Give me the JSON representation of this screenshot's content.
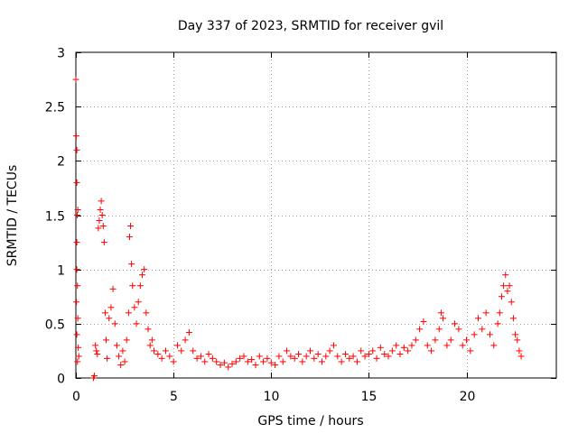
{
  "chart_data": {
    "type": "scatter",
    "title": "Day 337 of 2023, SRMTID for receiver gvil",
    "xlabel": "GPS time / hours",
    "ylabel": "SRMTID / TECUs",
    "xlim": [
      0,
      24.6
    ],
    "ylim": [
      0,
      3
    ],
    "xticks": [
      0,
      5,
      10,
      15,
      20
    ],
    "xtick_labels": [
      "0",
      "5",
      "10",
      "15",
      "20"
    ],
    "yticks": [
      0,
      0.5,
      1,
      1.5,
      2,
      2.5,
      3
    ],
    "ytick_labels": [
      "0",
      "0.5",
      "1",
      "1.5",
      "2",
      "2.5",
      "3"
    ],
    "grid": true,
    "marker": "+",
    "series": [
      {
        "name": "SRMTID",
        "color": "#ff0000",
        "points": [
          [
            0.0,
            2.75
          ],
          [
            0.02,
            2.23
          ],
          [
            0.05,
            2.1
          ],
          [
            0.05,
            1.8
          ],
          [
            0.07,
            1.5
          ],
          [
            0.1,
            1.55
          ],
          [
            0.05,
            1.25
          ],
          [
            0.05,
            1.0
          ],
          [
            0.08,
            0.85
          ],
          [
            0.03,
            0.7
          ],
          [
            0.1,
            0.55
          ],
          [
            0.05,
            0.4
          ],
          [
            0.12,
            0.28
          ],
          [
            0.15,
            0.2
          ],
          [
            0.08,
            0.15
          ],
          [
            0.9,
            0.0
          ],
          [
            0.95,
            0.02
          ],
          [
            1.0,
            0.3
          ],
          [
            1.05,
            0.25
          ],
          [
            1.1,
            0.22
          ],
          [
            1.15,
            1.38
          ],
          [
            1.2,
            1.45
          ],
          [
            1.25,
            1.55
          ],
          [
            1.3,
            1.63
          ],
          [
            1.35,
            1.5
          ],
          [
            1.4,
            1.4
          ],
          [
            1.45,
            1.25
          ],
          [
            1.5,
            0.6
          ],
          [
            1.55,
            0.35
          ],
          [
            1.6,
            0.18
          ],
          [
            1.7,
            0.55
          ],
          [
            1.8,
            0.65
          ],
          [
            1.9,
            0.82
          ],
          [
            2.0,
            0.5
          ],
          [
            2.1,
            0.3
          ],
          [
            2.2,
            0.2
          ],
          [
            2.3,
            0.12
          ],
          [
            2.4,
            0.25
          ],
          [
            2.5,
            0.15
          ],
          [
            2.6,
            0.35
          ],
          [
            2.7,
            0.6
          ],
          [
            2.75,
            1.3
          ],
          [
            2.8,
            1.4
          ],
          [
            2.85,
            1.05
          ],
          [
            2.9,
            0.85
          ],
          [
            3.0,
            0.65
          ],
          [
            3.1,
            0.5
          ],
          [
            3.2,
            0.7
          ],
          [
            3.3,
            0.85
          ],
          [
            3.4,
            0.95
          ],
          [
            3.5,
            1.0
          ],
          [
            3.6,
            0.6
          ],
          [
            3.7,
            0.45
          ],
          [
            3.8,
            0.3
          ],
          [
            3.9,
            0.35
          ],
          [
            4.0,
            0.25
          ],
          [
            4.2,
            0.22
          ],
          [
            4.4,
            0.18
          ],
          [
            4.6,
            0.25
          ],
          [
            4.8,
            0.2
          ],
          [
            5.0,
            0.15
          ],
          [
            5.2,
            0.3
          ],
          [
            5.4,
            0.25
          ],
          [
            5.6,
            0.35
          ],
          [
            5.8,
            0.42
          ],
          [
            6.0,
            0.25
          ],
          [
            6.2,
            0.18
          ],
          [
            6.4,
            0.2
          ],
          [
            6.6,
            0.15
          ],
          [
            6.8,
            0.22
          ],
          [
            7.0,
            0.18
          ],
          [
            7.2,
            0.15
          ],
          [
            7.4,
            0.12
          ],
          [
            7.6,
            0.14
          ],
          [
            7.8,
            0.1
          ],
          [
            8.0,
            0.13
          ],
          [
            8.2,
            0.15
          ],
          [
            8.4,
            0.18
          ],
          [
            8.6,
            0.2
          ],
          [
            8.8,
            0.15
          ],
          [
            9.0,
            0.17
          ],
          [
            9.2,
            0.12
          ],
          [
            9.4,
            0.2
          ],
          [
            9.6,
            0.15
          ],
          [
            9.8,
            0.18
          ],
          [
            10.0,
            0.14
          ],
          [
            10.2,
            0.12
          ],
          [
            10.4,
            0.2
          ],
          [
            10.6,
            0.15
          ],
          [
            10.8,
            0.25
          ],
          [
            11.0,
            0.2
          ],
          [
            11.2,
            0.18
          ],
          [
            11.4,
            0.22
          ],
          [
            11.6,
            0.15
          ],
          [
            11.8,
            0.2
          ],
          [
            12.0,
            0.25
          ],
          [
            12.2,
            0.18
          ],
          [
            12.4,
            0.22
          ],
          [
            12.6,
            0.15
          ],
          [
            12.8,
            0.2
          ],
          [
            13.0,
            0.25
          ],
          [
            13.2,
            0.3
          ],
          [
            13.4,
            0.2
          ],
          [
            13.6,
            0.15
          ],
          [
            13.8,
            0.22
          ],
          [
            14.0,
            0.18
          ],
          [
            14.2,
            0.2
          ],
          [
            14.4,
            0.15
          ],
          [
            14.6,
            0.25
          ],
          [
            14.8,
            0.2
          ],
          [
            15.0,
            0.22
          ],
          [
            15.2,
            0.25
          ],
          [
            15.4,
            0.18
          ],
          [
            15.6,
            0.28
          ],
          [
            15.8,
            0.22
          ],
          [
            16.0,
            0.2
          ],
          [
            16.2,
            0.25
          ],
          [
            16.4,
            0.3
          ],
          [
            16.6,
            0.22
          ],
          [
            16.8,
            0.28
          ],
          [
            17.0,
            0.25
          ],
          [
            17.2,
            0.3
          ],
          [
            17.4,
            0.35
          ],
          [
            17.6,
            0.45
          ],
          [
            17.8,
            0.52
          ],
          [
            18.0,
            0.3
          ],
          [
            18.2,
            0.25
          ],
          [
            18.4,
            0.35
          ],
          [
            18.6,
            0.45
          ],
          [
            18.7,
            0.6
          ],
          [
            18.8,
            0.55
          ],
          [
            19.0,
            0.3
          ],
          [
            19.2,
            0.35
          ],
          [
            19.4,
            0.5
          ],
          [
            19.6,
            0.45
          ],
          [
            19.8,
            0.3
          ],
          [
            20.0,
            0.35
          ],
          [
            20.2,
            0.25
          ],
          [
            20.4,
            0.4
          ],
          [
            20.6,
            0.55
          ],
          [
            20.8,
            0.45
          ],
          [
            21.0,
            0.6
          ],
          [
            21.2,
            0.4
          ],
          [
            21.4,
            0.3
          ],
          [
            21.6,
            0.5
          ],
          [
            21.7,
            0.6
          ],
          [
            21.8,
            0.75
          ],
          [
            21.9,
            0.85
          ],
          [
            22.0,
            0.95
          ],
          [
            22.1,
            0.8
          ],
          [
            22.2,
            0.85
          ],
          [
            22.3,
            0.7
          ],
          [
            22.4,
            0.55
          ],
          [
            22.5,
            0.4
          ],
          [
            22.6,
            0.35
          ],
          [
            22.7,
            0.25
          ],
          [
            22.8,
            0.2
          ]
        ]
      }
    ]
  }
}
